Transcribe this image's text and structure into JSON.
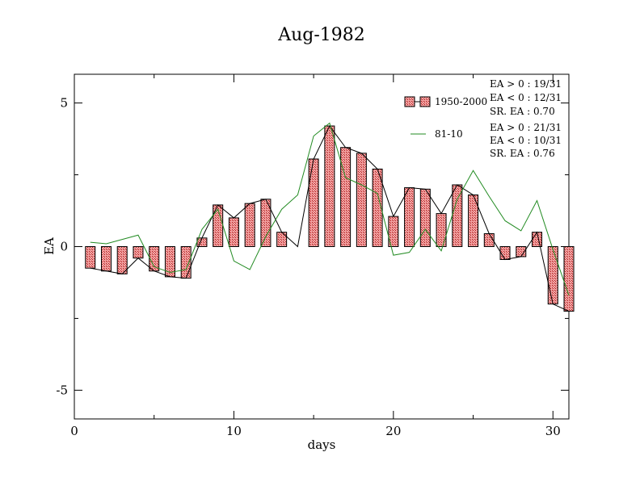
{
  "chart_data": {
    "type": "bar",
    "title": "Aug-1982",
    "xlabel": "days",
    "ylabel": "EA",
    "xlim": [
      0,
      31
    ],
    "ylim": [
      -6,
      6
    ],
    "xticks": [
      0,
      10,
      20,
      30
    ],
    "yticks": [
      -5,
      0,
      5
    ],
    "grid": false,
    "legend_position": "top-right",
    "x": [
      1,
      2,
      3,
      4,
      5,
      6,
      7,
      8,
      9,
      10,
      11,
      12,
      13,
      14,
      15,
      16,
      17,
      18,
      19,
      20,
      21,
      22,
      23,
      24,
      25,
      26,
      27,
      28,
      29,
      30,
      31
    ],
    "series": [
      {
        "name": "1950-2000",
        "style": "bar+line",
        "color": "#e07070",
        "line_color": "#000000",
        "values": [
          -0.75,
          -0.85,
          -0.95,
          -0.4,
          -0.85,
          -1.05,
          -1.1,
          0.3,
          1.45,
          1.0,
          1.5,
          1.65,
          0.5,
          0.0,
          3.05,
          4.2,
          3.45,
          3.25,
          2.7,
          1.05,
          2.05,
          2.0,
          1.15,
          2.15,
          1.8,
          0.45,
          -0.45,
          -0.35,
          0.5,
          -2.0,
          -2.25
        ]
      },
      {
        "name": "81-10",
        "style": "line",
        "color": "#228b22",
        "values": [
          0.15,
          0.1,
          0.25,
          0.4,
          -0.7,
          -0.9,
          -0.8,
          0.6,
          1.3,
          -0.5,
          -0.8,
          0.35,
          1.3,
          1.8,
          3.85,
          4.3,
          2.4,
          2.15,
          1.85,
          -0.3,
          -0.2,
          0.6,
          -0.15,
          1.65,
          2.65,
          1.75,
          0.9,
          0.55,
          1.6,
          -0.1,
          -1.7
        ]
      }
    ],
    "annotations": {
      "set1": [
        "EA > 0 : 19/31",
        "EA < 0 : 12/31",
        "SR. EA :  0.70"
      ],
      "set2": [
        "EA > 0 : 21/31",
        "EA < 0 : 10/31",
        "SR. EA :  0.76"
      ]
    }
  }
}
